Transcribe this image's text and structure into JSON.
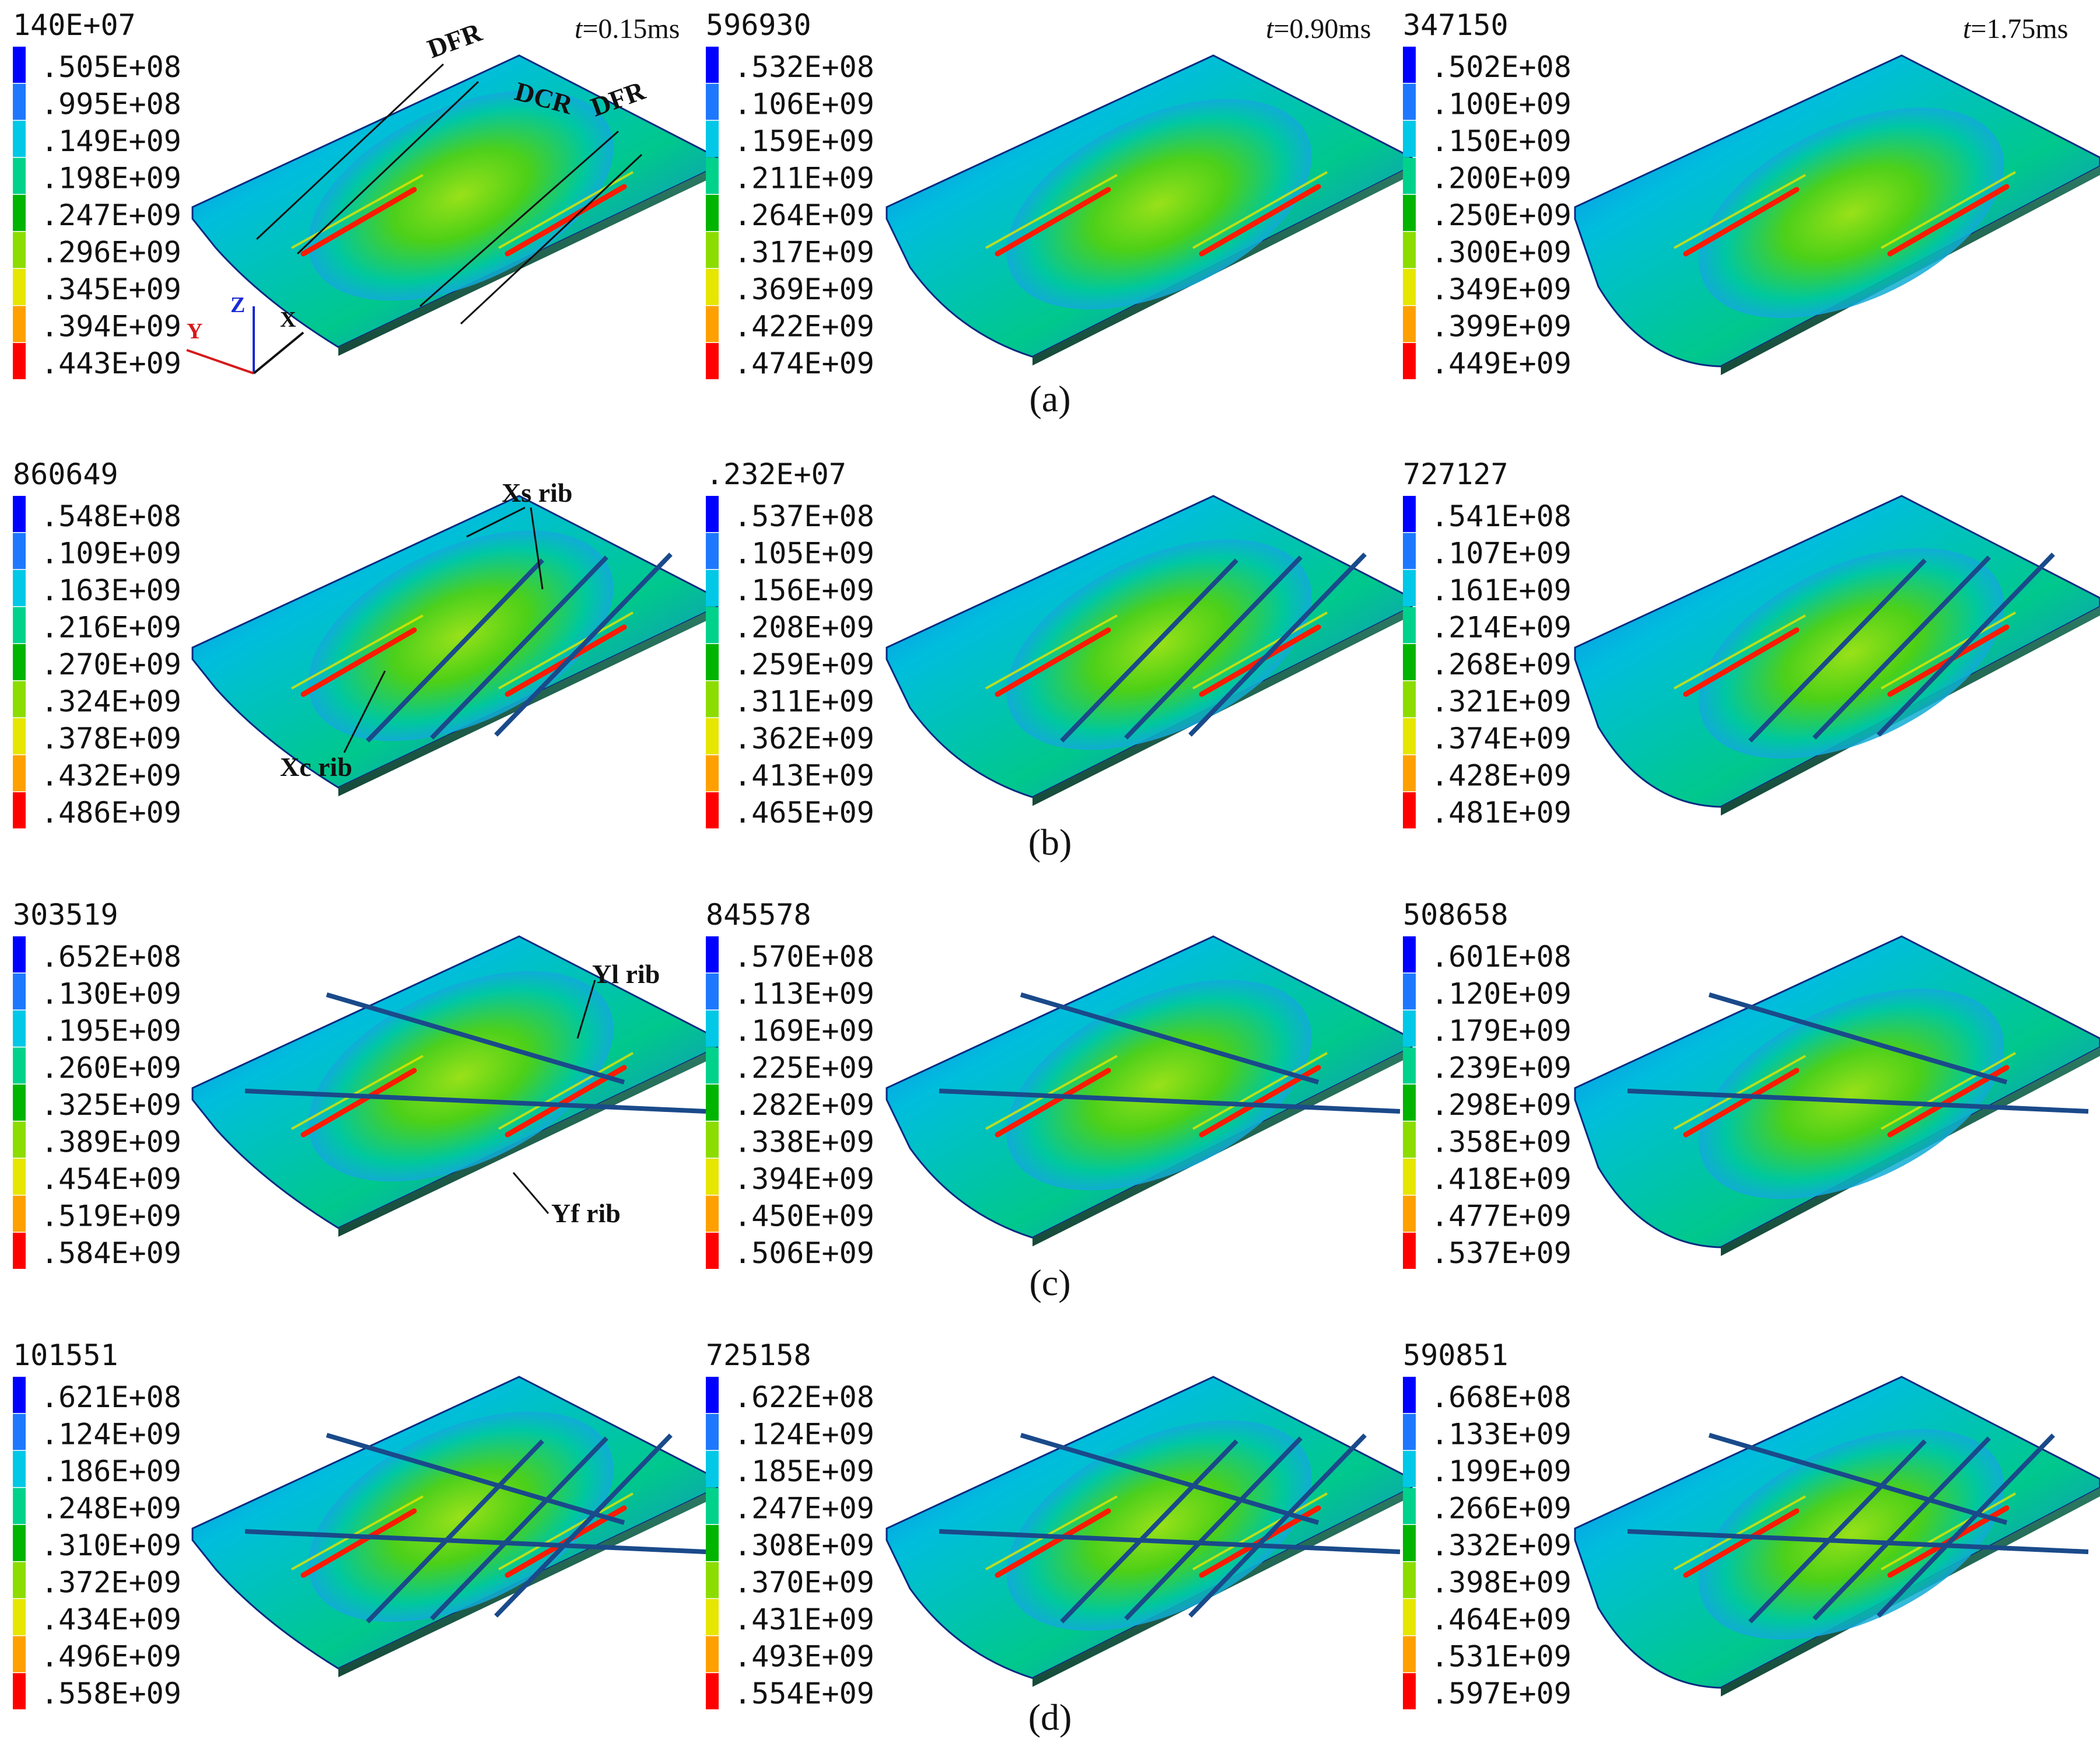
{
  "figure": {
    "rows": [
      {
        "label": "(a)",
        "panels": [
          {
            "time": "0.15ms",
            "legend": [
              "140E+07",
              ".505E+08",
              ".995E+08",
              ".149E+09",
              ".198E+09",
              ".247E+09",
              ".296E+09",
              ".345E+09",
              ".394E+09",
              ".443E+09"
            ]
          },
          {
            "time": "0.90ms",
            "legend": [
              "596930",
              ".532E+08",
              ".106E+09",
              ".159E+09",
              ".211E+09",
              ".264E+09",
              ".317E+09",
              ".369E+09",
              ".422E+09",
              ".474E+09"
            ]
          },
          {
            "time": "1.75ms",
            "legend": [
              "347150",
              ".502E+08",
              ".100E+09",
              ".150E+09",
              ".200E+09",
              ".250E+09",
              ".300E+09",
              ".349E+09",
              ".399E+09",
              ".449E+09"
            ]
          }
        ]
      },
      {
        "label": "(b)",
        "panels": [
          {
            "legend": [
              "860649",
              ".548E+08",
              ".109E+09",
              ".163E+09",
              ".216E+09",
              ".270E+09",
              ".324E+09",
              ".378E+09",
              ".432E+09",
              ".486E+09"
            ]
          },
          {
            "legend": [
              ".232E+07",
              ".537E+08",
              ".105E+09",
              ".156E+09",
              ".208E+09",
              ".259E+09",
              ".311E+09",
              ".362E+09",
              ".413E+09",
              ".465E+09"
            ]
          },
          {
            "legend": [
              "727127",
              ".541E+08",
              ".107E+09",
              ".161E+09",
              ".214E+09",
              ".268E+09",
              ".321E+09",
              ".374E+09",
              ".428E+09",
              ".481E+09"
            ]
          }
        ]
      },
      {
        "label": "(c)",
        "panels": [
          {
            "legend": [
              "303519",
              ".652E+08",
              ".130E+09",
              ".195E+09",
              ".260E+09",
              ".325E+09",
              ".389E+09",
              ".454E+09",
              ".519E+09",
              ".584E+09"
            ]
          },
          {
            "legend": [
              "845578",
              ".570E+08",
              ".113E+09",
              ".169E+09",
              ".225E+09",
              ".282E+09",
              ".338E+09",
              ".394E+09",
              ".450E+09",
              ".506E+09"
            ]
          },
          {
            "legend": [
              "508658",
              ".601E+08",
              ".120E+09",
              ".179E+09",
              ".239E+09",
              ".298E+09",
              ".358E+09",
              ".418E+09",
              ".477E+09",
              ".537E+09"
            ]
          }
        ]
      },
      {
        "label": "(d)",
        "panels": [
          {
            "legend": [
              "101551",
              ".621E+08",
              ".124E+09",
              ".186E+09",
              ".248E+09",
              ".310E+09",
              ".372E+09",
              ".434E+09",
              ".496E+09",
              ".558E+09"
            ]
          },
          {
            "legend": [
              "725158",
              ".622E+08",
              ".124E+09",
              ".185E+09",
              ".247E+09",
              ".308E+09",
              ".370E+09",
              ".431E+09",
              ".493E+09",
              ".554E+09"
            ]
          },
          {
            "legend": [
              "590851",
              ".668E+08",
              ".133E+09",
              ".199E+09",
              ".266E+09",
              ".332E+09",
              ".398E+09",
              ".464E+09",
              ".531E+09",
              ".597E+09"
            ]
          }
        ]
      }
    ],
    "time_prefix": "t=",
    "legend_colors": [
      "#0000ff",
      "#1e78ff",
      "#00c8e6",
      "#00d28c",
      "#00b400",
      "#8cdc00",
      "#e6e600",
      "#ffa000",
      "#ff0000"
    ],
    "annotations": {
      "dfr": "DFR",
      "dcr": "DCR",
      "xs_rib": "Xs rib",
      "xc_rib": "Xc rib",
      "yl_rib": "Yl rib",
      "yf_rib": "Yf rib"
    },
    "axes": {
      "x": "X",
      "y": "Y",
      "z": "Z"
    }
  }
}
